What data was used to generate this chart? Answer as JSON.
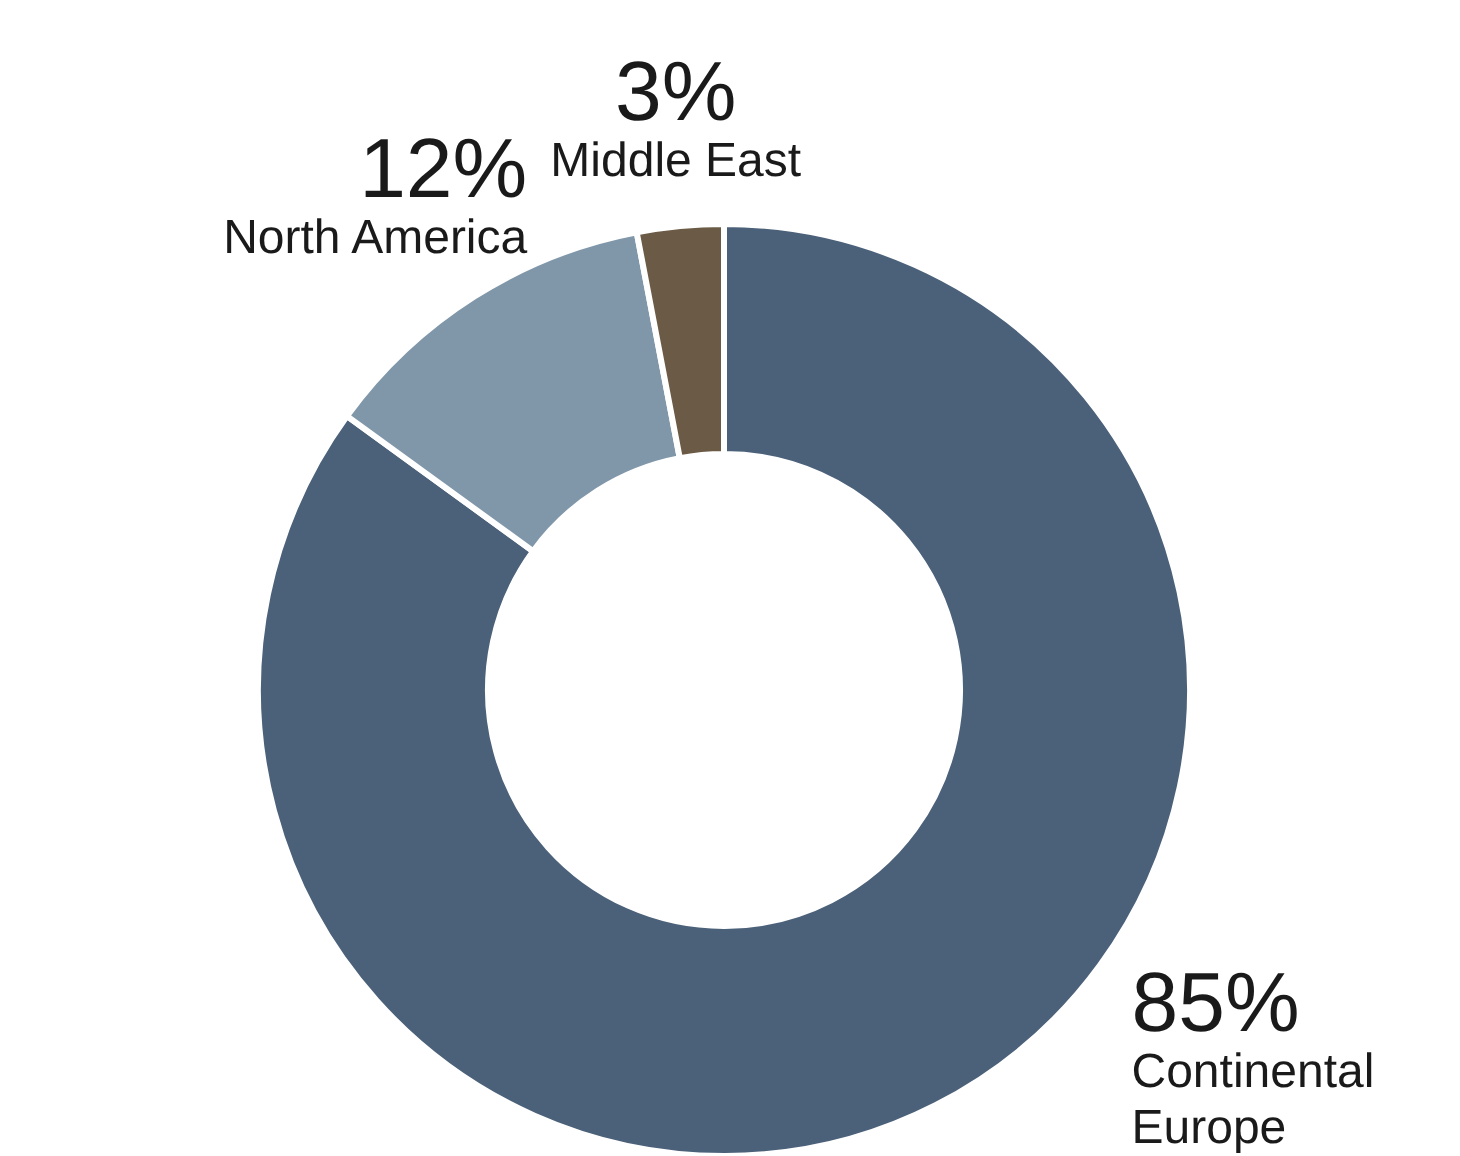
{
  "chart_data": {
    "type": "donut",
    "categories": [
      "Continental Europe",
      "North America",
      "Middle East"
    ],
    "values": [
      85,
      12,
      3
    ],
    "colors": [
      "#4b6079",
      "#8097aa",
      "#6b5b46"
    ],
    "value_labels": [
      "85%",
      "12%",
      "3%"
    ]
  }
}
